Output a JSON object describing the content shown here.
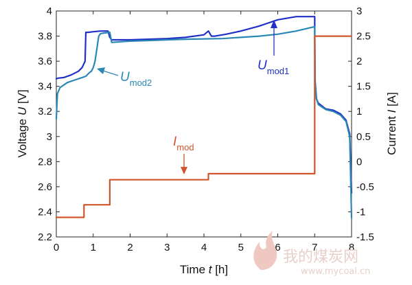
{
  "chart_data": {
    "type": "line",
    "xlabel_prefix": "Time ",
    "xlabel_var": "t",
    "xlabel_unit": " [h]",
    "ylabel_left_prefix": "Voltage ",
    "ylabel_left_var": "U",
    "ylabel_left_unit": " [V]",
    "ylabel_right_prefix": "Current ",
    "ylabel_right_var": "I",
    "ylabel_right_unit": " [A]",
    "xlim": [
      0,
      8
    ],
    "ylim_left": [
      2.2,
      4.0
    ],
    "ylim_right": [
      -1.5,
      3.0
    ],
    "xticks": [
      "0",
      "1",
      "2",
      "3",
      "4",
      "5",
      "6",
      "7",
      "8"
    ],
    "yticks_left": [
      "2.2",
      "2.4",
      "2.6",
      "2.8",
      "3",
      "3.2",
      "3.4",
      "3.6",
      "3.8",
      "4"
    ],
    "yticks_right": [
      "-1.5",
      "-1",
      "-0.5",
      "0",
      "0.5",
      "1",
      "1.5",
      "2",
      "2.5",
      "3"
    ],
    "grid": false,
    "series": [
      {
        "name": "U_mod1",
        "axis": "left",
        "color": "#1f2fc8",
        "x": [
          0,
          0.05,
          0.2,
          0.4,
          0.6,
          0.7,
          0.78,
          0.8,
          0.86,
          1.0,
          1.2,
          1.4,
          1.45,
          1.5,
          2.0,
          2.5,
          3.0,
          3.5,
          4.0,
          4.12,
          4.2,
          4.3,
          4.6,
          5.0,
          5.5,
          6.0,
          6.5,
          6.7,
          7.0,
          7.01,
          7.05,
          7.1,
          7.3,
          7.5,
          7.7,
          7.85,
          7.95,
          8.0
        ],
        "y": [
          3.46,
          3.465,
          3.47,
          3.49,
          3.52,
          3.55,
          3.6,
          3.83,
          3.83,
          3.835,
          3.84,
          3.84,
          3.79,
          3.77,
          3.77,
          3.775,
          3.78,
          3.79,
          3.81,
          3.84,
          3.8,
          3.8,
          3.815,
          3.84,
          3.88,
          3.93,
          3.955,
          3.955,
          3.955,
          3.45,
          3.3,
          3.265,
          3.22,
          3.21,
          3.18,
          3.13,
          3.02,
          2.55
        ]
      },
      {
        "name": "U_mod2",
        "axis": "left",
        "color": "#2a86b5",
        "x": [
          0,
          0.03,
          0.1,
          0.3,
          0.5,
          0.7,
          0.8,
          0.9,
          0.95,
          1.0,
          1.05,
          1.1,
          1.15,
          1.2,
          1.3,
          1.45,
          1.5,
          2.0,
          2.5,
          3.0,
          3.5,
          4.0,
          4.5,
          5.0,
          5.5,
          6.0,
          6.5,
          7.0,
          7.01,
          7.05,
          7.1,
          7.3,
          7.5,
          7.7,
          7.85,
          7.95,
          8.0
        ],
        "y": [
          3.14,
          3.34,
          3.39,
          3.43,
          3.45,
          3.47,
          3.48,
          3.51,
          3.52,
          3.55,
          3.6,
          3.7,
          3.8,
          3.82,
          3.825,
          3.83,
          3.75,
          3.76,
          3.765,
          3.77,
          3.775,
          3.778,
          3.78,
          3.79,
          3.8,
          3.815,
          3.84,
          3.875,
          3.44,
          3.3,
          3.255,
          3.215,
          3.2,
          3.17,
          3.12,
          3.0,
          2.35
        ]
      },
      {
        "name": "I_mod",
        "axis": "right",
        "color": "#d2542a",
        "x": [
          0,
          0.75,
          0.75,
          1.45,
          1.45,
          4.12,
          4.12,
          7.0,
          7.0,
          8.0
        ],
        "y": [
          -1.11,
          -1.11,
          -0.86,
          -0.86,
          -0.36,
          -0.36,
          -0.24,
          -0.24,
          2.5,
          2.5
        ]
      }
    ],
    "annotations": [
      {
        "main": "U",
        "sub": "mod1",
        "color": "#1f2fc8"
      },
      {
        "main": "U",
        "sub": "mod2",
        "color": "#2a86b5"
      },
      {
        "main": "I",
        "sub": "mod",
        "color": "#d2542a"
      }
    ],
    "watermark": {
      "text": "我的煤炭网",
      "url": "www.mycoal.cn"
    }
  }
}
